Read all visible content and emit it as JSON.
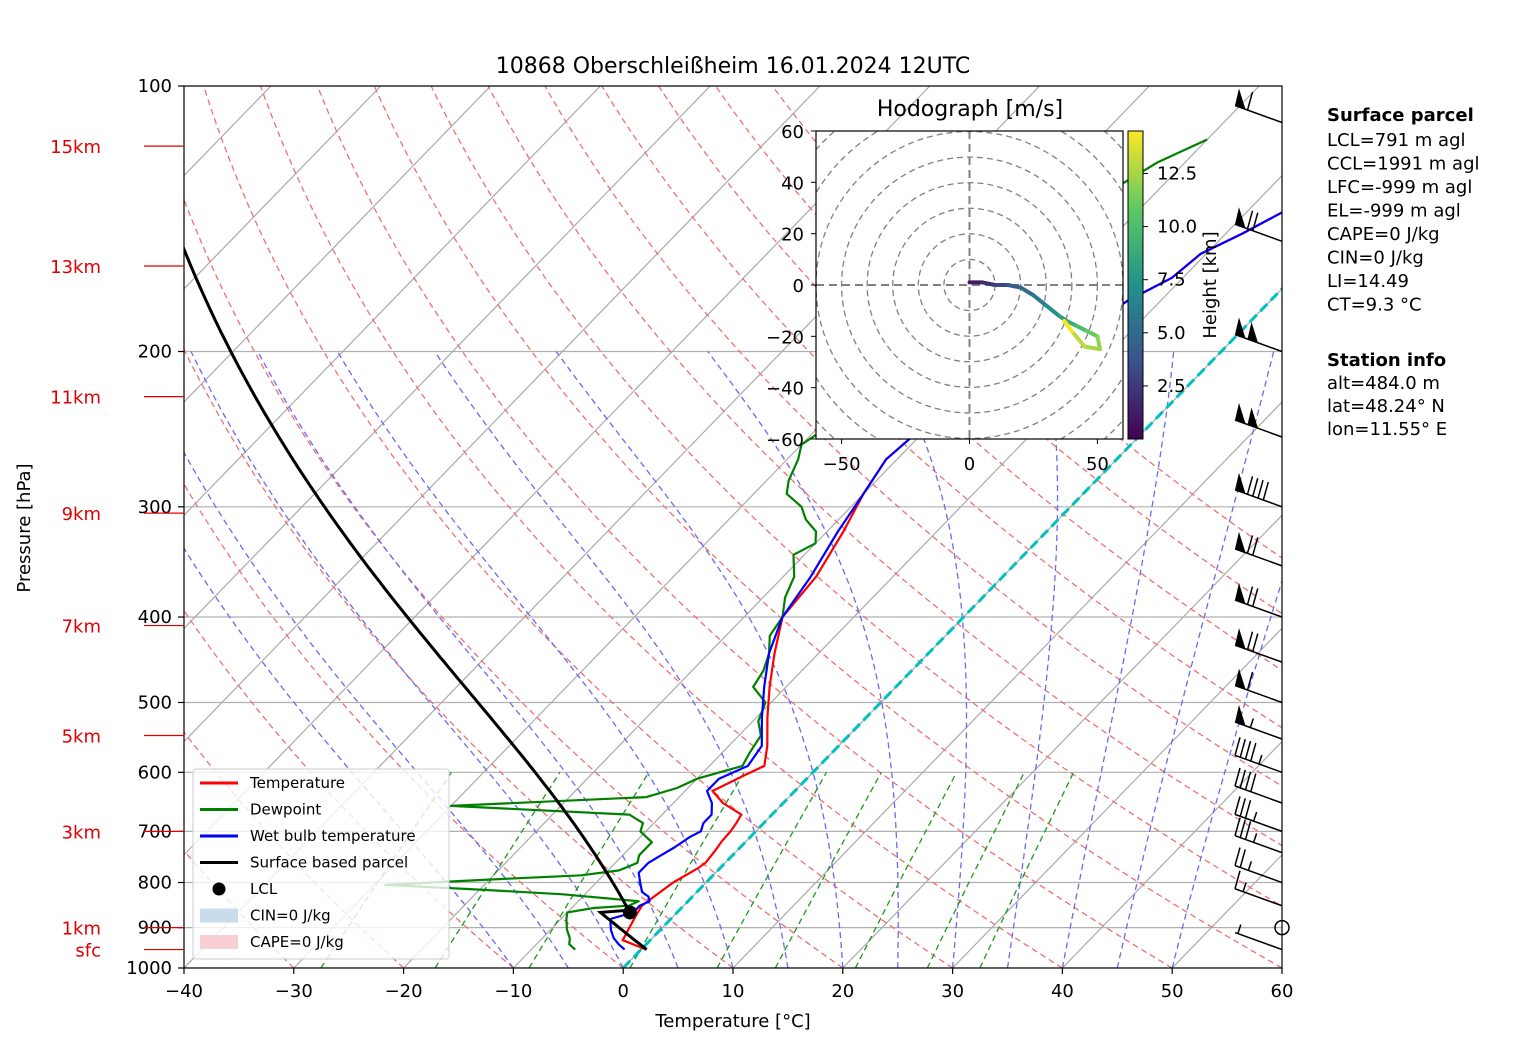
{
  "title": "10868 Oberschleißheim 16.01.2024 12UTC",
  "chart_data": {
    "type": "line",
    "subtype": "skew-t log-p diagram",
    "xlabel": "Temperature [°C]",
    "ylabel": "Pressure [hPa]",
    "xlim": [
      -40,
      60
    ],
    "ylim": [
      1000,
      100
    ],
    "y_scale": "log",
    "x_ticks": [
      -40,
      -30,
      -20,
      -10,
      0,
      10,
      20,
      30,
      40,
      50,
      60
    ],
    "y_ticks": [
      1000,
      900,
      800,
      700,
      600,
      500,
      400,
      300,
      200,
      100
    ],
    "height_labels": [
      {
        "label": "sfc",
        "p": 953
      },
      {
        "label": "1km",
        "p": 900
      },
      {
        "label": "3km",
        "p": 700
      },
      {
        "label": "5km",
        "p": 545
      },
      {
        "label": "7km",
        "p": 409
      },
      {
        "label": "9km",
        "p": 305
      },
      {
        "label": "11km",
        "p": 225
      },
      {
        "label": "13km",
        "p": 160
      },
      {
        "label": "15km",
        "p": 117
      }
    ],
    "series": [
      {
        "name": "Temperature",
        "color": "#ff0000",
        "points": [
          [
            953,
            0.5
          ],
          [
            930,
            -2.5
          ],
          [
            900,
            -3
          ],
          [
            870,
            -3.5
          ],
          [
            850,
            -3.8
          ],
          [
            830,
            -3.5
          ],
          [
            800,
            -3
          ],
          [
            770,
            -2
          ],
          [
            760,
            -1.8
          ],
          [
            735,
            -2
          ],
          [
            720,
            -2.2
          ],
          [
            700,
            -2.3
          ],
          [
            685,
            -2.5
          ],
          [
            670,
            -2.8
          ],
          [
            650,
            -5.5
          ],
          [
            630,
            -7.5
          ],
          [
            605,
            -6
          ],
          [
            590,
            -5
          ],
          [
            560,
            -6.5
          ],
          [
            520,
            -9
          ],
          [
            480,
            -11.5
          ],
          [
            440,
            -14
          ],
          [
            400,
            -16.5
          ],
          [
            360,
            -17
          ],
          [
            320,
            -18.5
          ],
          [
            290,
            -20
          ],
          [
            265,
            -21
          ],
          [
            245,
            -20.5
          ],
          [
            225,
            -20
          ],
          [
            210,
            -19
          ],
          [
            198,
            -16.5
          ],
          [
            185,
            -14
          ],
          [
            175,
            -13
          ],
          [
            165,
            -11
          ],
          [
            155,
            -10.5
          ],
          [
            147,
            -8.5
          ],
          [
            138,
            -6.5
          ],
          [
            130,
            -4.5
          ],
          [
            125,
            -2
          ],
          [
            121,
            -0.5
          ],
          [
            118,
            0
          ],
          [
            115,
            0.5
          ]
        ]
      },
      {
        "name": "Dewpoint",
        "color": "#008000",
        "points": [
          [
            953,
            -6
          ],
          [
            940,
            -7
          ],
          [
            925,
            -7.5
          ],
          [
            905,
            -8.5
          ],
          [
            880,
            -9.5
          ],
          [
            865,
            -10
          ],
          [
            855,
            -8
          ],
          [
            850,
            -5
          ],
          [
            840,
            -4.5
          ],
          [
            825,
            -12
          ],
          [
            815,
            -20
          ],
          [
            805,
            -29
          ],
          [
            795,
            -21
          ],
          [
            785,
            -12
          ],
          [
            775,
            -9
          ],
          [
            760,
            -8
          ],
          [
            745,
            -8.5
          ],
          [
            720,
            -8.5
          ],
          [
            700,
            -10.5
          ],
          [
            685,
            -11
          ],
          [
            670,
            -13
          ],
          [
            655,
            -30
          ],
          [
            640,
            -13
          ],
          [
            625,
            -11
          ],
          [
            610,
            -10
          ],
          [
            590,
            -7
          ],
          [
            570,
            -7.5
          ],
          [
            545,
            -8
          ],
          [
            525,
            -9.5
          ],
          [
            500,
            -10.5
          ],
          [
            480,
            -13
          ],
          [
            460,
            -13.5
          ],
          [
            440,
            -14.5
          ],
          [
            420,
            -16
          ],
          [
            400,
            -16.5
          ],
          [
            380,
            -18
          ],
          [
            360,
            -19
          ],
          [
            340,
            -21
          ],
          [
            330,
            -20
          ],
          [
            320,
            -21
          ],
          [
            310,
            -23
          ],
          [
            300,
            -24.5
          ],
          [
            290,
            -27
          ],
          [
            280,
            -28
          ],
          [
            265,
            -29
          ],
          [
            255,
            -30
          ],
          [
            248,
            -29.5
          ],
          [
            240,
            -30
          ],
          [
            232,
            -29
          ],
          [
            225,
            -29.5
          ],
          [
            215,
            -26
          ],
          [
            210,
            -32
          ],
          [
            205,
            -27
          ],
          [
            200,
            -30
          ],
          [
            195,
            -29
          ],
          [
            185,
            -30.5
          ],
          [
            172,
            -30
          ],
          [
            160,
            -29
          ],
          [
            150,
            -28
          ],
          [
            140,
            -26
          ],
          [
            130,
            -24
          ],
          [
            122,
            -22.5
          ],
          [
            115,
            -20
          ]
        ]
      },
      {
        "name": "Wet bulb temperature",
        "color": "#0000ff",
        "points": [
          [
            953,
            -1.5
          ],
          [
            940,
            -2.5
          ],
          [
            925,
            -3.5
          ],
          [
            905,
            -4.5
          ],
          [
            880,
            -5.5
          ],
          [
            865,
            -4
          ],
          [
            850,
            -4
          ],
          [
            840,
            -3.5
          ],
          [
            830,
            -4
          ],
          [
            820,
            -5
          ],
          [
            800,
            -6
          ],
          [
            780,
            -7
          ],
          [
            760,
            -7
          ],
          [
            745,
            -6.5
          ],
          [
            730,
            -6
          ],
          [
            710,
            -5.5
          ],
          [
            700,
            -5
          ],
          [
            685,
            -5.5
          ],
          [
            670,
            -5.5
          ],
          [
            650,
            -6.5
          ],
          [
            630,
            -8
          ],
          [
            610,
            -8
          ],
          [
            590,
            -6.5
          ],
          [
            560,
            -7
          ],
          [
            520,
            -9.5
          ],
          [
            480,
            -12
          ],
          [
            440,
            -14.5
          ],
          [
            400,
            -16.5
          ],
          [
            360,
            -17.5
          ],
          [
            320,
            -19
          ],
          [
            290,
            -20
          ],
          [
            265,
            -21
          ],
          [
            245,
            -20.5
          ],
          [
            225,
            -20
          ],
          [
            210,
            -19
          ],
          [
            198,
            -16.5
          ],
          [
            185,
            -14
          ],
          [
            175,
            -13
          ],
          [
            165,
            -11
          ],
          [
            155,
            -10.5
          ],
          [
            147,
            -8.5
          ],
          [
            138,
            -6.5
          ],
          [
            130,
            -4.5
          ],
          [
            125,
            -2
          ],
          [
            121,
            -0.5
          ],
          [
            118,
            0
          ],
          [
            115,
            0.5
          ]
        ]
      },
      {
        "name": "Surface based parcel",
        "color": "#000000",
        "type": "parcel",
        "surface": {
          "p": 953,
          "t": 0.5
        },
        "lcl": {
          "p": 865,
          "t": -4.3
        }
      }
    ],
    "lcl_marker": {
      "name": "LCL",
      "p": 865,
      "t": -4.3
    },
    "legend": {
      "placement": "lower-left",
      "entries": [
        {
          "label": "Temperature",
          "color": "#ff0000",
          "kind": "line"
        },
        {
          "label": "Dewpoint",
          "color": "#008000",
          "kind": "line"
        },
        {
          "label": "Wet bulb temperature",
          "color": "#0000ff",
          "kind": "line"
        },
        {
          "label": "Surface based parcel",
          "color": "#000000",
          "kind": "line"
        },
        {
          "label": "LCL",
          "color": "#000000",
          "kind": "dot"
        },
        {
          "label": "CIN=0 J/kg",
          "color": "#c8dcec",
          "kind": "patch"
        },
        {
          "label": "CAPE=0 J/kg",
          "color": "#f8d0d4",
          "kind": "patch"
        }
      ]
    },
    "dry_adiabats_theta_c": [
      -40,
      -30,
      -20,
      -10,
      0,
      10,
      20,
      30,
      40,
      50,
      60,
      70,
      80,
      90,
      100,
      110,
      120,
      130
    ],
    "moist_adiabats_c": [
      -10,
      -5,
      0,
      5,
      10,
      15,
      20,
      25,
      30,
      35,
      40,
      45,
      50
    ],
    "mixing_ratios_gkg": [
      0.4,
      1,
      2,
      4,
      7,
      10,
      16,
      24,
      32
    ],
    "zero_isotherm": {
      "t": 0,
      "color": "#00c0c0"
    },
    "wind_barbs": [
      {
        "p": 953,
        "speed_kt": 5
      },
      {
        "p": 900,
        "speed_kt": 0
      },
      {
        "p": 850,
        "speed_kt": 15
      },
      {
        "p": 800,
        "speed_kt": 25
      },
      {
        "p": 740,
        "speed_kt": 35
      },
      {
        "p": 700,
        "speed_kt": 35
      },
      {
        "p": 650,
        "speed_kt": 40
      },
      {
        "p": 600,
        "speed_kt": 45
      },
      {
        "p": 550,
        "speed_kt": 55
      },
      {
        "p": 500,
        "speed_kt": 60
      },
      {
        "p": 450,
        "speed_kt": 70
      },
      {
        "p": 400,
        "speed_kt": 70
      },
      {
        "p": 350,
        "speed_kt": 70
      },
      {
        "p": 300,
        "speed_kt": 90
      },
      {
        "p": 250,
        "speed_kt": 100
      },
      {
        "p": 200,
        "speed_kt": 100
      },
      {
        "p": 150,
        "speed_kt": 70
      },
      {
        "p": 110,
        "speed_kt": 60
      }
    ],
    "hodograph": {
      "title": "Hodograph [m/s]",
      "xlim": [
        -60,
        60
      ],
      "ylim": [
        -60,
        60
      ],
      "x_ticks": [
        -50,
        0,
        50
      ],
      "y_ticks": [
        60,
        40,
        20,
        0,
        -20,
        -40,
        -60
      ],
      "rings": [
        10,
        20,
        30,
        40,
        50,
        60,
        70,
        80
      ],
      "colorbar": {
        "label": "Height [km]",
        "ticks": [
          2.5,
          5.0,
          7.5,
          10.0,
          12.5
        ],
        "range": [
          0,
          14.5
        ]
      },
      "points": [
        [
          0,
          1,
          0
        ],
        [
          5,
          1,
          1
        ],
        [
          10,
          0,
          2
        ],
        [
          15,
          0,
          3
        ],
        [
          20,
          -1,
          4
        ],
        [
          25,
          -4,
          5
        ],
        [
          30,
          -8,
          6
        ],
        [
          35,
          -12,
          7
        ],
        [
          38,
          -14,
          8
        ],
        [
          42,
          -16,
          9
        ],
        [
          46,
          -18,
          10
        ],
        [
          50,
          -20,
          11
        ],
        [
          51,
          -25,
          12
        ],
        [
          45,
          -24,
          12.5
        ],
        [
          40,
          -18,
          13
        ],
        [
          37,
          -14,
          14.5
        ]
      ]
    }
  },
  "surface_parcel": {
    "heading": "Surface parcel",
    "lines": [
      "LCL=791 m agl",
      "CCL=1991 m agl",
      "LFC=-999 m agl",
      "EL=-999 m agl",
      "CAPE=0 J/kg",
      "CIN=0 J/kg",
      "LI=14.49",
      "CT=9.3 °C"
    ]
  },
  "station_info": {
    "heading": "Station info",
    "lines": [
      "alt=484.0 m",
      "lat=48.24° N",
      "lon=11.55° E"
    ]
  }
}
